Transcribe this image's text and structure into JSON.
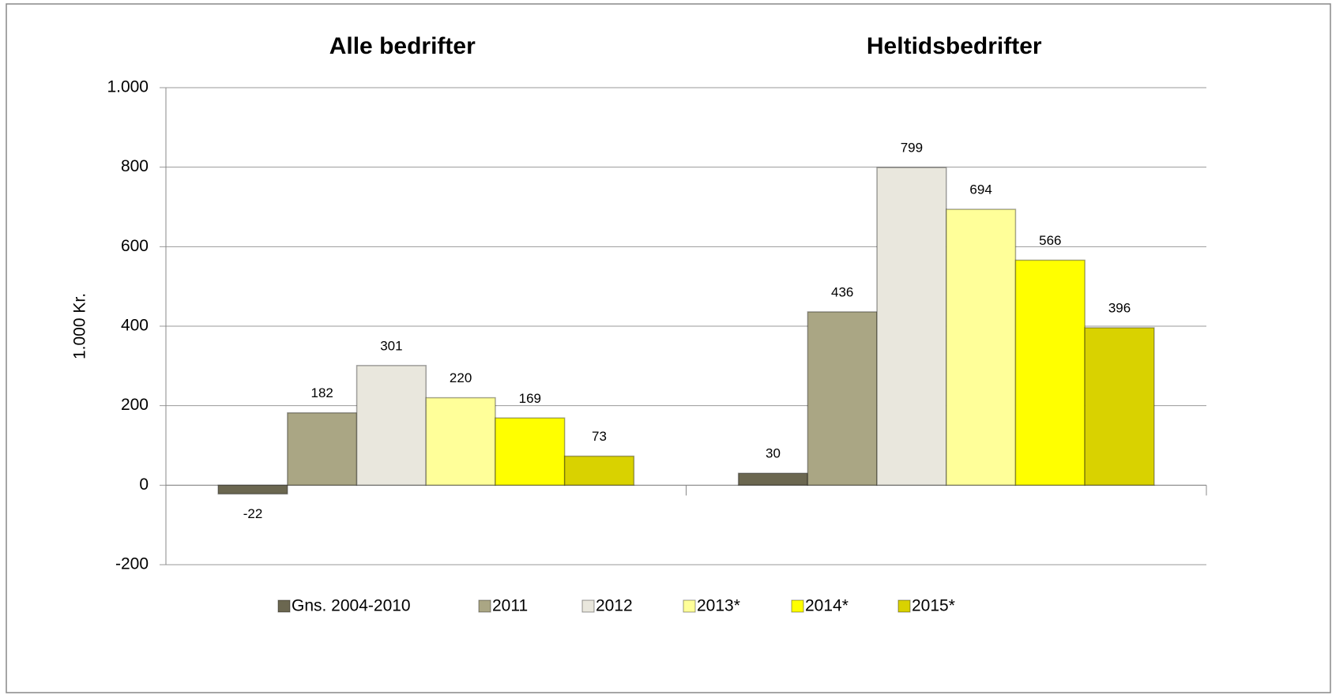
{
  "chart_data": {
    "type": "bar",
    "categories": [
      "Alle bedrifter",
      "Heltidsbedrifter"
    ],
    "ylabel": "1.000 Kr.",
    "ylim": [
      -200,
      1000
    ],
    "yticks": [
      -200,
      0,
      200,
      400,
      600,
      800,
      {
        "value": 1000,
        "label": "1.000"
      }
    ],
    "grid": true,
    "legend": "bottom",
    "series": [
      {
        "name": "Gns. 2004-2010",
        "color": "#6b6750",
        "values": [
          -22,
          30
        ]
      },
      {
        "name": "2011",
        "color": "#aaa684",
        "values": [
          182,
          436
        ]
      },
      {
        "name": "2012",
        "color": "#e9e7dd",
        "values": [
          301,
          799
        ]
      },
      {
        "name": "2013*",
        "color": "#ffff99",
        "values": [
          220,
          694
        ]
      },
      {
        "name": "2014*",
        "color": "#ffff00",
        "values": [
          169,
          566
        ]
      },
      {
        "name": "2015*",
        "color": "#d9d200",
        "values": [
          73,
          396
        ]
      }
    ]
  }
}
